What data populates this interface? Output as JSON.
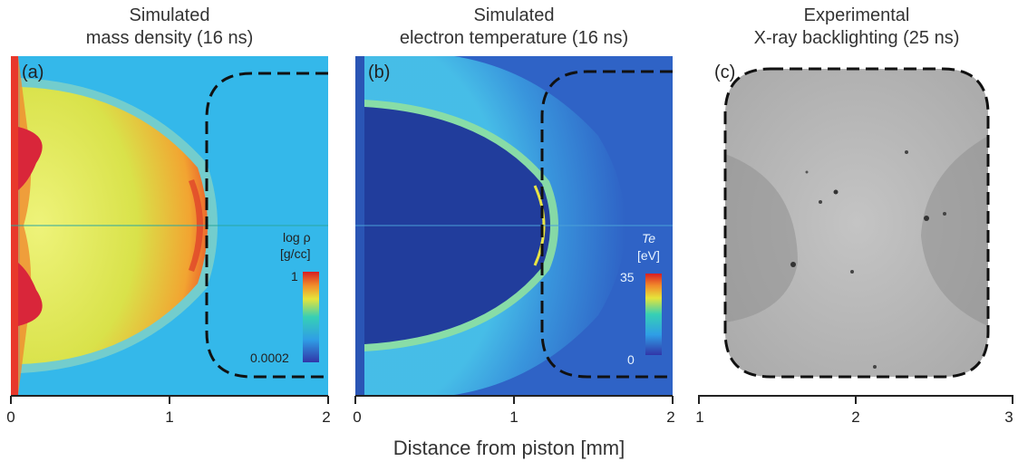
{
  "panels": [
    {
      "id": "a",
      "label": "(a)",
      "title_line1": "Simulated",
      "title_line2": "mass density (16 ns)",
      "colorbar": {
        "quantity": "log ρ",
        "unit": "[g/cc]",
        "max": "1",
        "min": "0.0002"
      },
      "ticks": [
        "0",
        "1",
        "2"
      ]
    },
    {
      "id": "b",
      "label": "(b)",
      "title_line1": "Simulated",
      "title_line2": "electron temperature (16 ns)",
      "colorbar": {
        "quantity": "Te",
        "unit": "[eV]",
        "max": "35",
        "min": "0"
      },
      "ticks": [
        "0",
        "1",
        "2"
      ]
    },
    {
      "id": "c",
      "label": "(c)",
      "title_line1": "Experimental",
      "title_line2": "X-ray backlighting (25 ns)",
      "ticks": [
        "1",
        "2",
        "3"
      ]
    }
  ],
  "xlabel": "Distance from piston [mm]",
  "colors": {
    "density_background": "#34b8ea",
    "temperature_background": "#2f63c6",
    "cold_core": "#213d9c",
    "xray_gray": "#a8a8a8"
  }
}
